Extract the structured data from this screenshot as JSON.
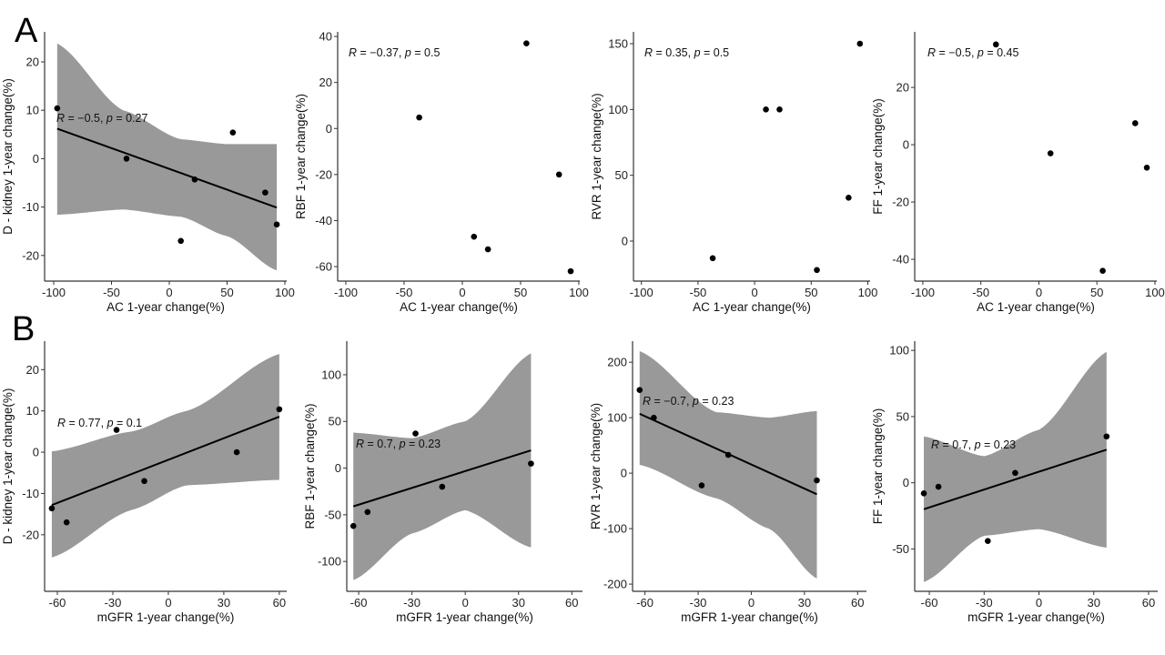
{
  "panel_labels": [
    "A",
    "B"
  ],
  "chart_data": [
    {
      "type": "scatter",
      "panel": "A",
      "xlabel": "AC 1-year change(%)",
      "ylabel": "D - kidney 1-year change(%)",
      "xlim": [
        -107.9,
        101.6
      ],
      "ylim": [
        -25.3,
        26.2
      ],
      "xticks": [
        -100,
        -50,
        0,
        50,
        100
      ],
      "yticks": [
        -20,
        -10,
        0,
        10,
        20
      ],
      "points": [
        [
          -97,
          10.4
        ],
        [
          -37,
          0
        ],
        [
          10,
          -17
        ],
        [
          22,
          -4.3
        ],
        [
          55,
          5.4
        ],
        [
          83,
          -7
        ],
        [
          93,
          -13.6
        ]
      ],
      "fit": [
        [
          -97,
          6.2
        ],
        [
          93,
          -10.1
        ]
      ],
      "band": [
        [
          -97,
          -11.6,
          23.8
        ],
        [
          -40,
          -10.5,
          10
        ],
        [
          10,
          -12,
          4
        ],
        [
          50,
          -16,
          3
        ],
        [
          93,
          -23.1,
          3
        ]
      ],
      "annotation": {
        "r": "−0.5",
        "p": "0.27"
      }
    },
    {
      "type": "scatter",
      "panel": "A",
      "xlabel": "AC 1-year change(%)",
      "ylabel": "RBF 1-year change(%)",
      "xlim": [
        -107,
        100.8
      ],
      "ylim": [
        -66.3,
        42
      ],
      "xticks": [
        -100,
        -50,
        0,
        50,
        100
      ],
      "yticks": [
        -60,
        -40,
        -20,
        0,
        20,
        40
      ],
      "points": [
        [
          -37,
          4.8
        ],
        [
          10,
          -47
        ],
        [
          22,
          -52.5
        ],
        [
          55,
          37
        ],
        [
          83,
          -20
        ],
        [
          93,
          -62
        ]
      ],
      "annotation": {
        "r": "−0.37",
        "p": "0.5"
      }
    },
    {
      "type": "scatter",
      "panel": "A",
      "xlabel": "AC 1-year change(%)",
      "ylabel": "RVR 1-year change(%)",
      "xlim": [
        -107,
        102
      ],
      "ylim": [
        -30.4,
        159
      ],
      "xticks": [
        -100,
        -50,
        0,
        50,
        100
      ],
      "yticks": [
        0,
        50,
        100,
        150
      ],
      "points": [
        [
          -37,
          -13
        ],
        [
          10,
          100
        ],
        [
          22,
          100
        ],
        [
          55,
          -22
        ],
        [
          83,
          33
        ],
        [
          93,
          150
        ]
      ],
      "annotation": {
        "r": "0.35",
        "p": "0.5"
      }
    },
    {
      "type": "scatter",
      "panel": "A",
      "xlabel": "AC 1-year change(%)",
      "ylabel": "FF 1-year change(%)",
      "xlim": [
        -107,
        101.6
      ],
      "ylim": [
        -47.6,
        39.4
      ],
      "xticks": [
        -100,
        -50,
        0,
        50,
        100
      ],
      "yticks": [
        -40,
        -20,
        0,
        20
      ],
      "points": [
        [
          -37,
          35
        ],
        [
          10,
          -3
        ],
        [
          55,
          -44
        ],
        [
          83,
          7.5
        ],
        [
          93,
          -8
        ]
      ],
      "annotation": {
        "r": "−0.5",
        "p": "0.45"
      }
    },
    {
      "type": "scatter",
      "panel": "B",
      "xlabel": "mGFR 1-year change(%)",
      "ylabel": "D - kidney 1-year change(%)",
      "xlim": [
        -66.9,
        64
      ],
      "ylim": [
        -33.7,
        26.9
      ],
      "xticks": [
        -60,
        -30,
        0,
        30,
        60
      ],
      "yticks": [
        -20,
        -10,
        0,
        10,
        20
      ],
      "points": [
        [
          -63,
          -13.6
        ],
        [
          -55,
          -17
        ],
        [
          -28,
          5.4
        ],
        [
          -13,
          -7
        ],
        [
          37,
          0
        ],
        [
          60,
          10.4
        ]
      ],
      "fit": [
        [
          -63,
          -12.8
        ],
        [
          60,
          8.6
        ]
      ],
      "band": [
        [
          -63,
          -25.5,
          0.2
        ],
        [
          -20,
          -14,
          5
        ],
        [
          10,
          -8,
          10
        ],
        [
          60,
          -6.7,
          23.8
        ]
      ],
      "annotation": {
        "r": "0.77",
        "p": "0.1"
      }
    },
    {
      "type": "scatter",
      "panel": "B",
      "xlabel": "mGFR 1-year change(%)",
      "ylabel": "RBF 1-year change(%)",
      "xlim": [
        -66.7,
        66
      ],
      "ylim": [
        -132,
        136
      ],
      "xticks": [
        -60,
        -30,
        0,
        30,
        60
      ],
      "yticks": [
        -100,
        -50,
        0,
        50,
        100
      ],
      "points": [
        [
          -63,
          -62
        ],
        [
          -55,
          -47
        ],
        [
          -28,
          37
        ],
        [
          -13,
          -20
        ],
        [
          37,
          4.8
        ]
      ],
      "fit": [
        [
          -63,
          -41
        ],
        [
          37,
          19
        ]
      ],
      "band": [
        [
          -63,
          -120,
          38
        ],
        [
          -30,
          -70,
          32
        ],
        [
          0,
          -45,
          50
        ],
        [
          37,
          -85,
          123
        ]
      ],
      "annotation": {
        "r": "0.7",
        "p": "0.23"
      }
    },
    {
      "type": "scatter",
      "panel": "B",
      "xlabel": "mGFR 1-year change(%)",
      "ylabel": "RVR 1-year change(%)",
      "xlim": [
        -67,
        65
      ],
      "ylim": [
        -213,
        238
      ],
      "xticks": [
        -60,
        -30,
        0,
        30,
        60
      ],
      "yticks": [
        -200,
        -100,
        0,
        100,
        200
      ],
      "points": [
        [
          -63,
          150
        ],
        [
          -55,
          100
        ],
        [
          -28,
          -22
        ],
        [
          -13,
          33
        ],
        [
          37,
          -13
        ]
      ],
      "fit": [
        [
          -63,
          107
        ],
        [
          37,
          -38
        ]
      ],
      "band": [
        [
          -63,
          15,
          220
        ],
        [
          -20,
          -45,
          110
        ],
        [
          10,
          -100,
          100
        ],
        [
          37,
          -190,
          112
        ]
      ],
      "annotation": {
        "r": "−0.7",
        "p": "0.23"
      }
    },
    {
      "type": "scatter",
      "panel": "B",
      "xlabel": "mGFR 1-year change(%)",
      "ylabel": "FF 1-year change(%)",
      "xlim": [
        -68,
        65
      ],
      "ylim": [
        -82,
        107
      ],
      "xticks": [
        -60,
        -30,
        0,
        30,
        60
      ],
      "yticks": [
        -50,
        0,
        50,
        100
      ],
      "points": [
        [
          -63,
          -8
        ],
        [
          -55,
          -3
        ],
        [
          -28,
          -44
        ],
        [
          -13,
          7.5
        ],
        [
          37,
          35
        ]
      ],
      "fit": [
        [
          -63,
          -20
        ],
        [
          37,
          25
        ]
      ],
      "band": [
        [
          -63,
          -75,
          35
        ],
        [
          -30,
          -40,
          20
        ],
        [
          0,
          -35,
          40
        ],
        [
          37,
          -49,
          99
        ]
      ],
      "annotation": {
        "r": "0.7",
        "p": "0.23"
      }
    }
  ],
  "colors": {
    "band": "#999999",
    "point": "#000000",
    "line": "#000000"
  }
}
